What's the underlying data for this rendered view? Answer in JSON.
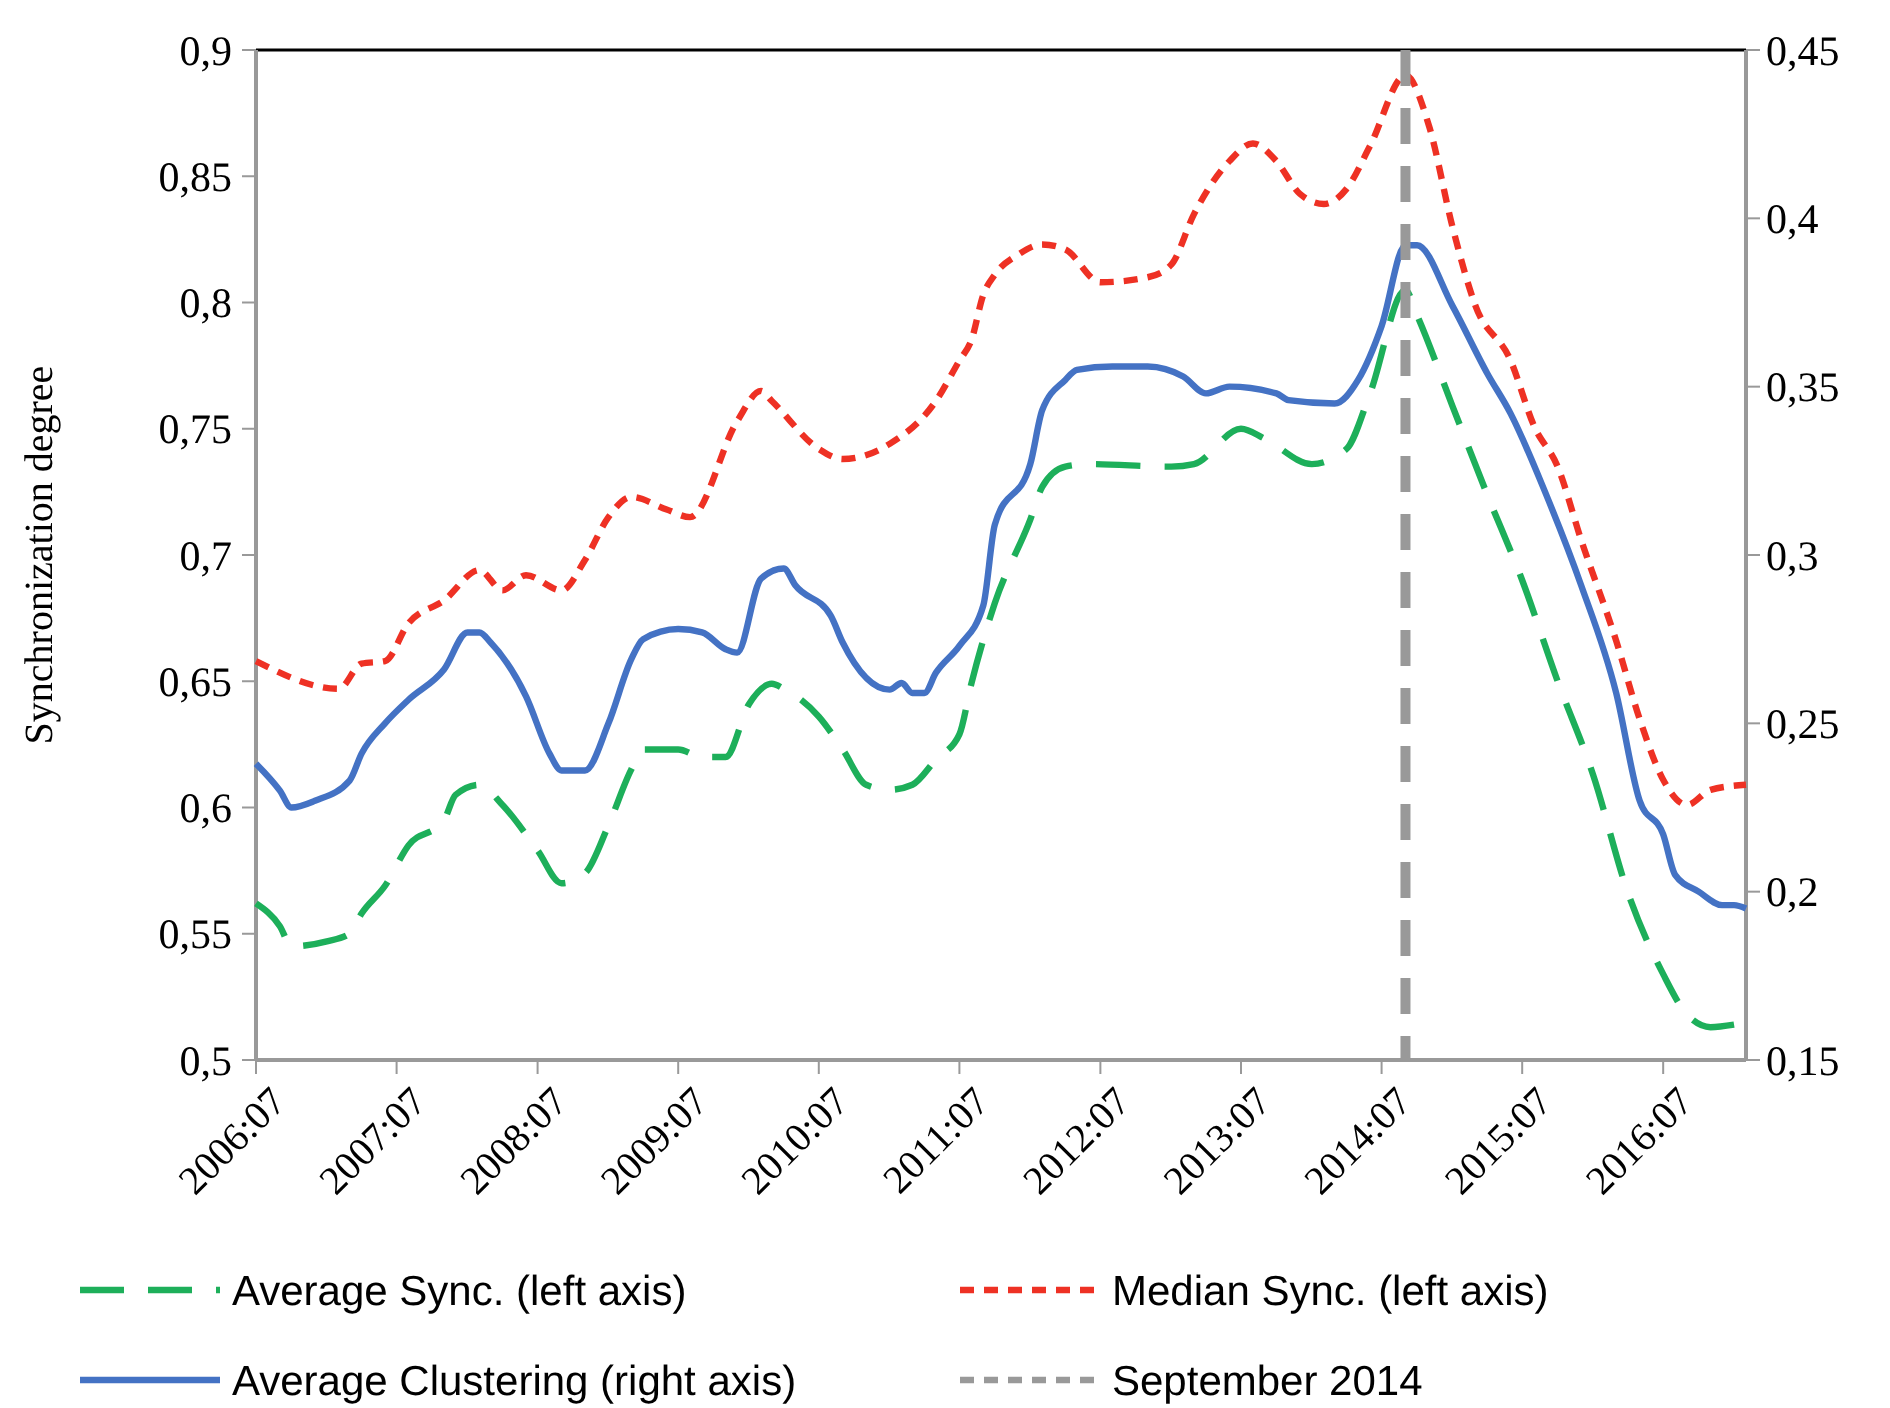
{
  "chart_data": {
    "type": "line",
    "ylabel": "Synchronization degree",
    "xlim": [
      "2006-07",
      "2017-02"
    ],
    "xticks": [
      {
        "value": "2006-07",
        "label": "2006:07"
      },
      {
        "value": "2007-07",
        "label": "2007:07"
      },
      {
        "value": "2008-07",
        "label": "2008:07"
      },
      {
        "value": "2009-07",
        "label": "2009:07"
      },
      {
        "value": "2010-07",
        "label": "2010:07"
      },
      {
        "value": "2011-07",
        "label": "2011:07"
      },
      {
        "value": "2012-07",
        "label": "2012:07"
      },
      {
        "value": "2013-07",
        "label": "2013:07"
      },
      {
        "value": "2014-07",
        "label": "2014:07"
      },
      {
        "value": "2015-07",
        "label": "2015:07"
      },
      {
        "value": "2016-07",
        "label": "2016:07"
      }
    ],
    "ylim": [
      0.5,
      0.9
    ],
    "yticks": [
      {
        "value": 0.5,
        "label": "0,5"
      },
      {
        "value": 0.55,
        "label": "0,55"
      },
      {
        "value": 0.6,
        "label": "0,6"
      },
      {
        "value": 0.65,
        "label": "0,65"
      },
      {
        "value": 0.7,
        "label": "0,7"
      },
      {
        "value": 0.75,
        "label": "0,75"
      },
      {
        "value": 0.8,
        "label": "0,8"
      },
      {
        "value": 0.85,
        "label": "0,85"
      },
      {
        "value": 0.9,
        "label": "0,9"
      }
    ],
    "y2lim": [
      0.15,
      0.45
    ],
    "y2ticks": [
      {
        "value": 0.15,
        "label": "0,15"
      },
      {
        "value": 0.2,
        "label": "0,2"
      },
      {
        "value": 0.25,
        "label": "0,25"
      },
      {
        "value": 0.3,
        "label": "0,3"
      },
      {
        "value": 0.35,
        "label": "0,35"
      },
      {
        "value": 0.4,
        "label": "0,4"
      },
      {
        "value": 0.45,
        "label": "0,45"
      }
    ],
    "grid": false,
    "legend": "bottom",
    "marker": "none",
    "series": [
      {
        "name": "Average Sync. (left axis)",
        "color": "#1daf5a",
        "line_style": "long-dashed",
        "x": [
          "2006-07",
          "2006-09",
          "2006-10",
          "2007-01",
          "2007-03",
          "2007-04",
          "2007-06",
          "2007-08",
          "2007-11",
          "2007-12",
          "2008-02",
          "2008-04",
          "2008-07",
          "2008-09",
          "2008-11",
          "2009-01",
          "2009-03",
          "2009-04",
          "2009-07",
          "2009-09",
          "2009-11",
          "2010-01",
          "2010-03",
          "2010-04",
          "2010-07",
          "2010-09",
          "2010-11",
          "2011-01",
          "2011-03",
          "2011-05",
          "2011-07",
          "2011-08",
          "2011-10",
          "2012-01",
          "2012-02",
          "2012-04",
          "2012-06",
          "2013-01",
          "2013-03",
          "2013-07",
          "2013-09",
          "2014-01",
          "2014-04",
          "2014-06",
          "2014-09",
          "2014-10",
          "2015-01",
          "2015-04",
          "2015-07",
          "2015-10",
          "2016-01",
          "2016-04",
          "2016-07",
          "2016-09",
          "2016-11",
          "2017-01"
        ],
        "values": [
          0.562,
          0.553,
          0.545,
          0.547,
          0.55,
          0.558,
          0.569,
          0.585,
          0.595,
          0.605,
          0.609,
          0.601,
          0.583,
          0.57,
          0.574,
          0.593,
          0.615,
          0.623,
          0.623,
          0.62,
          0.62,
          0.641,
          0.649,
          0.647,
          0.636,
          0.623,
          0.609,
          0.607,
          0.609,
          0.619,
          0.629,
          0.649,
          0.681,
          0.714,
          0.727,
          0.735,
          0.736,
          0.735,
          0.736,
          0.75,
          0.746,
          0.736,
          0.742,
          0.764,
          0.805,
          0.795,
          0.759,
          0.724,
          0.69,
          0.65,
          0.613,
          0.566,
          0.534,
          0.518,
          0.513,
          0.514
        ]
      },
      {
        "name": "Median Sync. (left axis)",
        "color": "#ee3124",
        "line_style": "dashed",
        "x": [
          "2006-07",
          "2007-02",
          "2007-04",
          "2007-06",
          "2007-08",
          "2007-11",
          "2008-02",
          "2008-04",
          "2008-06",
          "2008-09",
          "2008-11",
          "2009-01",
          "2009-03",
          "2009-06",
          "2009-08",
          "2009-12",
          "2010-02",
          "2010-03",
          "2010-07",
          "2010-09",
          "2011-01",
          "2011-05",
          "2011-07",
          "2011-08",
          "2011-09",
          "2011-10",
          "2011-12",
          "2012-02",
          "2012-04",
          "2012-07",
          "2012-11",
          "2013-01",
          "2013-03",
          "2013-06",
          "2013-08",
          "2013-10",
          "2013-12",
          "2014-02",
          "2014-04",
          "2014-06",
          "2014-09",
          "2014-11",
          "2015-01",
          "2015-03",
          "2015-06",
          "2015-08",
          "2015-10",
          "2015-12",
          "2016-03",
          "2016-05",
          "2016-07",
          "2016-09",
          "2016-11",
          "2017-02"
        ],
        "values": [
          0.658,
          0.647,
          0.657,
          0.658,
          0.673,
          0.682,
          0.694,
          0.686,
          0.692,
          0.686,
          0.698,
          0.715,
          0.723,
          0.718,
          0.715,
          0.753,
          0.765,
          0.761,
          0.742,
          0.738,
          0.744,
          0.761,
          0.777,
          0.785,
          0.803,
          0.811,
          0.819,
          0.823,
          0.821,
          0.808,
          0.81,
          0.815,
          0.835,
          0.856,
          0.863,
          0.856,
          0.843,
          0.839,
          0.845,
          0.862,
          0.89,
          0.87,
          0.83,
          0.799,
          0.777,
          0.751,
          0.735,
          0.706,
          0.666,
          0.635,
          0.611,
          0.601,
          0.607,
          0.609
        ]
      },
      {
        "name": "Average Clustering (right axis)",
        "color": "#4472c4",
        "line_style": "solid",
        "axis": "y2",
        "x": [
          "2006-07",
          "2006-09",
          "2006-10",
          "2006-12",
          "2007-03",
          "2007-04",
          "2007-06",
          "2007-08",
          "2007-11",
          "2008-01",
          "2008-02",
          "2008-03",
          "2008-06",
          "2008-08",
          "2008-09",
          "2008-11",
          "2009-01",
          "2009-03",
          "2009-04",
          "2009-07",
          "2009-09",
          "2009-11",
          "2009-12",
          "2010-02",
          "2010-04",
          "2010-05",
          "2010-08",
          "2010-09",
          "2011-01",
          "2011-02",
          "2011-03",
          "2011-04",
          "2011-05",
          "2011-07",
          "2011-09",
          "2011-10",
          "2012-01",
          "2012-02",
          "2012-04",
          "2012-05",
          "2012-08",
          "2012-11",
          "2013-02",
          "2013-04",
          "2013-06",
          "2013-10",
          "2013-11",
          "2014-03",
          "2014-05",
          "2014-07",
          "2014-09",
          "2014-10",
          "2015-01",
          "2015-04",
          "2015-06",
          "2015-09",
          "2015-12",
          "2016-03",
          "2016-05",
          "2016-07",
          "2016-08",
          "2016-10",
          "2016-12",
          "2017-01",
          "2017-02"
        ],
        "values": [
          0.238,
          0.23,
          0.225,
          0.227,
          0.233,
          0.241,
          0.25,
          0.257,
          0.266,
          0.277,
          0.277,
          0.274,
          0.258,
          0.241,
          0.236,
          0.236,
          0.25,
          0.269,
          0.275,
          0.278,
          0.277,
          0.272,
          0.271,
          0.293,
          0.296,
          0.291,
          0.282,
          0.274,
          0.26,
          0.262,
          0.259,
          0.259,
          0.265,
          0.273,
          0.285,
          0.309,
          0.327,
          0.343,
          0.352,
          0.355,
          0.356,
          0.356,
          0.353,
          0.348,
          0.35,
          0.348,
          0.346,
          0.345,
          0.352,
          0.368,
          0.392,
          0.392,
          0.374,
          0.354,
          0.342,
          0.318,
          0.291,
          0.259,
          0.227,
          0.217,
          0.205,
          0.2,
          0.196,
          0.196,
          0.195
        ]
      }
    ],
    "ref_lines": [
      {
        "axis": "x",
        "value": "2014-09",
        "label": "September 2014",
        "color": "#999999",
        "line_style": "dashed"
      }
    ]
  }
}
